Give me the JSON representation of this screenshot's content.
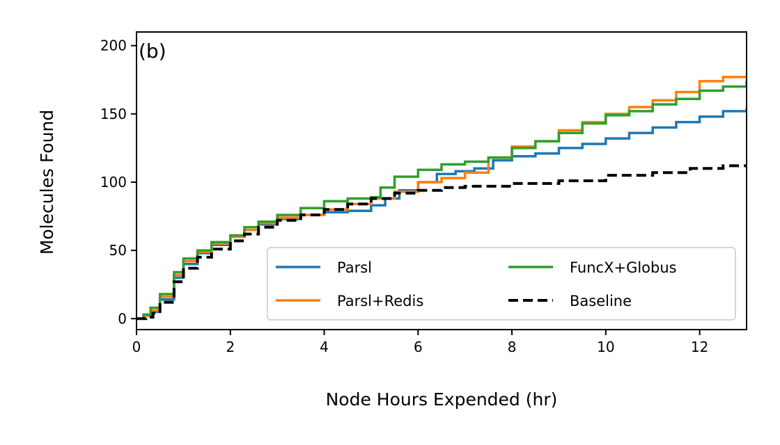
{
  "chart_data": {
    "type": "line",
    "panel_label": "(b)",
    "xlabel": "Node Hours Expended (hr)",
    "ylabel": "Molecules Found",
    "xlim": [
      0,
      13
    ],
    "ylim": [
      -8,
      210
    ],
    "xticks": [
      0,
      2,
      4,
      6,
      8,
      10,
      12
    ],
    "yticks": [
      0,
      50,
      100,
      150,
      200
    ],
    "grid": false,
    "legend": {
      "placement": "lower-right",
      "columns": 2
    },
    "series": [
      {
        "name": "Parsl",
        "color": "#1f77b4",
        "dashed": false,
        "x": [
          0,
          0.15,
          0.3,
          0.5,
          0.8,
          1.0,
          1.3,
          1.6,
          2.0,
          2.3,
          2.6,
          3.0,
          3.5,
          4.0,
          4.5,
          5.0,
          5.3,
          5.6,
          6.0,
          6.4,
          6.8,
          7.2,
          7.6,
          8.0,
          8.5,
          9.0,
          9.5,
          10.0,
          10.5,
          11.0,
          11.5,
          12.0,
          12.5,
          13.0
        ],
        "y": [
          0,
          2,
          5,
          14,
          30,
          40,
          48,
          54,
          60,
          65,
          69,
          73,
          76,
          78,
          79,
          83,
          88,
          94,
          100,
          106,
          108,
          110,
          116,
          119,
          121,
          125,
          128,
          132,
          136,
          140,
          144,
          148,
          152,
          154
        ]
      },
      {
        "name": "Parsl+Redis",
        "color": "#ff7f0e",
        "dashed": false,
        "x": [
          0,
          0.15,
          0.3,
          0.5,
          0.8,
          1.0,
          1.3,
          1.6,
          2.0,
          2.3,
          2.6,
          3.0,
          3.5,
          4.0,
          4.5,
          5.0,
          5.5,
          6.0,
          6.5,
          7.0,
          7.5,
          8.0,
          8.5,
          9.0,
          9.5,
          10.0,
          10.5,
          11.0,
          11.5,
          12.0,
          12.5,
          13.0
        ],
        "y": [
          0,
          2,
          6,
          16,
          32,
          42,
          49,
          55,
          60,
          65,
          70,
          74,
          76,
          80,
          84,
          88,
          93,
          100,
          103,
          107,
          118,
          126,
          130,
          138,
          144,
          150,
          155,
          160,
          166,
          174,
          177,
          178
        ]
      },
      {
        "name": "FuncX+Globus",
        "color": "#2ca02c",
        "dashed": false,
        "x": [
          0,
          0.15,
          0.3,
          0.5,
          0.8,
          1.0,
          1.3,
          1.6,
          2.0,
          2.3,
          2.6,
          3.0,
          3.5,
          4.0,
          4.5,
          5.0,
          5.2,
          5.5,
          6.0,
          6.5,
          7.0,
          7.5,
          8.0,
          8.5,
          9.0,
          9.5,
          10.0,
          10.5,
          11.0,
          11.5,
          12.0,
          12.5,
          13.0
        ],
        "y": [
          0,
          3,
          8,
          18,
          34,
          44,
          50,
          56,
          61,
          67,
          71,
          76,
          81,
          86,
          88,
          89,
          96,
          104,
          109,
          113,
          115,
          118,
          125,
          130,
          136,
          143,
          149,
          152,
          157,
          161,
          167,
          170,
          174
        ]
      },
      {
        "name": "Baseline",
        "color": "#000000",
        "dashed": true,
        "x": [
          0,
          0.2,
          0.35,
          0.5,
          0.8,
          1.0,
          1.3,
          1.6,
          2.0,
          2.3,
          2.6,
          3.0,
          3.5,
          4.0,
          4.5,
          5.0,
          5.5,
          6.0,
          6.5,
          7.0,
          8.0,
          9.0,
          10.0,
          11.0,
          11.8,
          12.5,
          13.0
        ],
        "y": [
          0,
          1,
          4,
          12,
          27,
          37,
          45,
          51,
          57,
          62,
          67,
          72,
          76,
          80,
          84,
          88,
          92,
          94,
          96,
          97,
          99,
          101,
          105,
          107,
          110,
          112,
          113
        ]
      }
    ]
  }
}
